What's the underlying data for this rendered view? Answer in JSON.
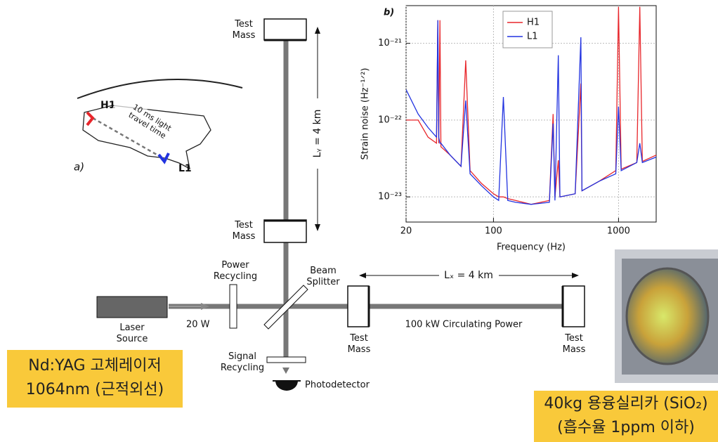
{
  "map": {
    "panel_label": "a)",
    "sites": [
      "H1",
      "L1"
    ],
    "annotation": "10 ms light\ntravel time"
  },
  "diagram": {
    "end_test_mass_y": "Test\nMass",
    "input_test_mass_y": "Test\nMass",
    "arm_y_length": "Lᵧ = 4 km",
    "power_recycling": "Power\nRecycling",
    "beam_splitter": "Beam\nSplitter",
    "arm_x_length": "Lₓ = 4 km",
    "laser": "Laser\nSource",
    "laser_power": "20 W",
    "input_test_mass_x": "Test\nMass",
    "circulating_power": "100 kW Circulating Power",
    "end_test_mass_x": "Test\nMass",
    "signal_recycling": "Signal\nRecycling",
    "photodetector": "Photodetector"
  },
  "notes": {
    "laser_note": [
      "Nd:YAG 고체레이저",
      "1064nm (근적외선)"
    ],
    "mirror_note": [
      "40kg 용융실리카 (SiO₂)",
      "(흡수율 1ppm 이하)"
    ]
  },
  "chart_data": {
    "type": "line",
    "panel_label": "b)",
    "x_label": "Frequency (Hz)",
    "y_label": "Strain noise (Hz⁻¹ᐟ²)",
    "x": [
      20,
      25,
      30,
      35,
      35.9,
      36.5,
      37.3,
      38,
      45,
      55,
      60,
      65,
      80,
      100,
      110,
      120,
      130,
      150,
      200,
      280,
      300,
      310,
      330,
      340,
      450,
      500,
      510,
      700,
      950,
      1000,
      1050,
      1400,
      1480,
      1550,
      2000
    ],
    "series": [
      {
        "name": "H1",
        "color": "#e8262b",
        "values": [
          1e-22,
          1e-22,
          6e-23,
          5e-23,
          2e-21,
          5e-23,
          2e-21,
          4.5e-23,
          3.5e-23,
          2.5e-23,
          6e-22,
          2.2e-23,
          1.5e-23,
          1.1e-23,
          1e-23,
          1e-23,
          9.5e-24,
          9e-24,
          8e-24,
          9e-24,
          1.2e-22,
          1e-23,
          3e-23,
          1e-23,
          1.1e-23,
          3e-22,
          1.2e-23,
          1.6e-23,
          2.2e-23,
          3e-21,
          2.3e-23,
          2.8e-23,
          3e-21,
          2.9e-23,
          3.5e-23
        ]
      },
      {
        "name": "L1",
        "color": "#2233e0",
        "values": [
          2.5e-22,
          1.2e-22,
          8e-23,
          6e-23,
          2e-21,
          6e-23,
          5e-23,
          5e-23,
          3.5e-23,
          2.5e-23,
          1.8e-22,
          2e-23,
          1.4e-23,
          1e-23,
          9e-24,
          2e-22,
          9e-24,
          8.5e-24,
          8e-24,
          8.5e-24,
          9e-23,
          9e-24,
          7e-22,
          1e-23,
          1.1e-23,
          1.2e-21,
          1.2e-23,
          1.6e-23,
          2e-23,
          1.5e-22,
          2.2e-23,
          2.8e-23,
          5e-23,
          2.8e-23,
          3.3e-23
        ]
      }
    ],
    "xlim": [
      20,
      2000
    ],
    "xticks": [
      20,
      100,
      1000
    ],
    "log_x": true,
    "ylim": [
      4.7e-24,
      3.1e-21
    ],
    "yticks": [
      {
        "value": 1e-23,
        "label": "10⁻²³"
      },
      {
        "value": 1e-22,
        "label": "10⁻²²"
      },
      {
        "value": 1e-21,
        "label": "10⁻²¹"
      }
    ],
    "log_y": true,
    "grid": true,
    "legend": "upper center"
  }
}
